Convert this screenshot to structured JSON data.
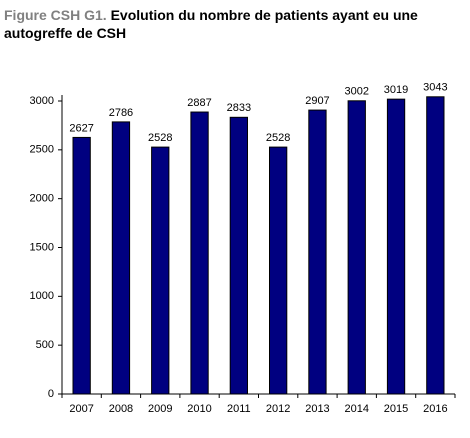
{
  "chart_data": {
    "type": "bar",
    "title_label": "Figure CSH G1.",
    "title": "Evolution du nombre de patients ayant eu une autogreffe de CSH",
    "categories": [
      "2007",
      "2008",
      "2009",
      "2010",
      "2011",
      "2012",
      "2013",
      "2014",
      "2015",
      "2016"
    ],
    "values": [
      2627,
      2786,
      2528,
      2887,
      2833,
      2528,
      2907,
      3002,
      3019,
      3043
    ],
    "color": "#000080",
    "ylim": [
      0,
      3000
    ],
    "yticks": [
      0,
      500,
      1000,
      1500,
      2000,
      2500,
      3000
    ],
    "grid": false
  }
}
